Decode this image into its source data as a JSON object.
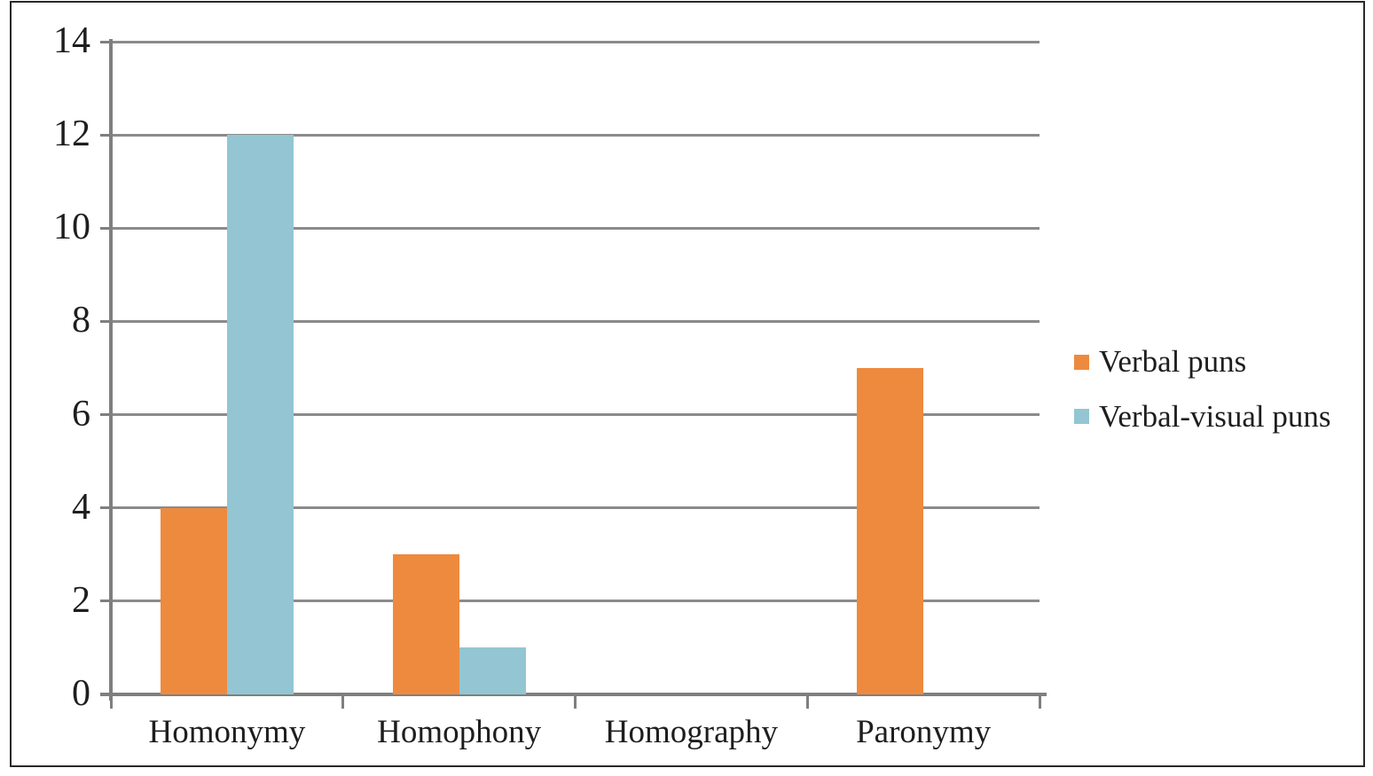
{
  "chart_data": {
    "type": "bar",
    "title": "",
    "xlabel": "",
    "ylabel": "",
    "categories": [
      "Homonymy",
      "Homophony",
      "Homography",
      "Paronymy"
    ],
    "series": [
      {
        "name": "Verbal puns",
        "color": "#ee8a3e",
        "values": [
          4,
          3,
          0,
          7
        ]
      },
      {
        "name": "Verbal-visual puns",
        "color": "#93c6d2",
        "values": [
          12,
          1,
          0,
          0
        ]
      }
    ],
    "ylim": [
      0,
      14
    ],
    "yticks": [
      0,
      2,
      4,
      6,
      8,
      10,
      12,
      14
    ],
    "grid": true,
    "legend_position": "right",
    "colors": {
      "gridline": "#8b8b8b",
      "axis": "#7f7f7f",
      "text": "#1e1e1e",
      "frame_border": "#2a282a",
      "background": "#ffffff"
    }
  }
}
